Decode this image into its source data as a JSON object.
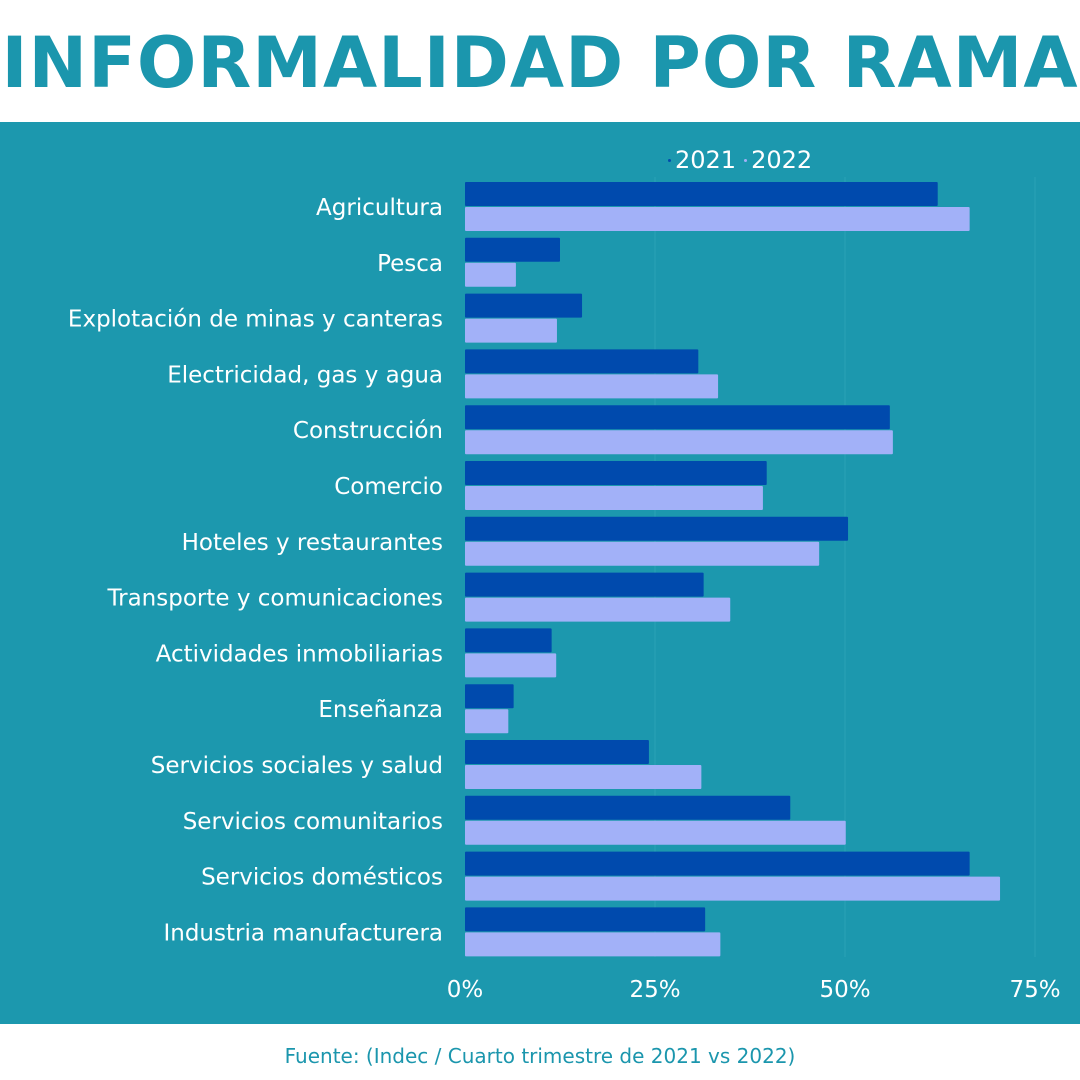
{
  "title": "INFORMALIDAD POR RAMA",
  "source": "Fuente: (Indec / Cuarto trimestre de 2021 vs 2022)",
  "chart_data": {
    "type": "bar",
    "orientation": "horizontal",
    "categories": [
      "Agricultura",
      "Pesca",
      "Explotación de minas y canteras",
      "Electricidad, gas y agua",
      "Construcción",
      "Comercio",
      "Hoteles y restaurantes",
      "Transporte y comunicaciones",
      "Actividades inmobiliarias",
      "Enseñanza",
      "Servicios sociales y salud",
      "Servicios comunitarios",
      "Servicios domésticos",
      "Industria manufacturera"
    ],
    "series": [
      {
        "name": "2021",
        "color": "#004aad",
        "values": [
          62.2,
          12.5,
          15.4,
          30.7,
          55.9,
          39.7,
          50.4,
          31.4,
          11.4,
          6.4,
          24.2,
          42.8,
          66.4,
          31.6
        ]
      },
      {
        "name": "2022",
        "color": "#a2b1f8",
        "values": [
          66.4,
          6.7,
          12.1,
          33.3,
          56.3,
          39.2,
          46.6,
          34.9,
          12.0,
          5.7,
          31.1,
          50.1,
          70.4,
          33.6
        ]
      }
    ],
    "xlim": [
      0,
      75
    ],
    "x_ticks": [
      "0%",
      "25%",
      "50%",
      "75%"
    ],
    "legend_position": "top",
    "grid": true
  }
}
